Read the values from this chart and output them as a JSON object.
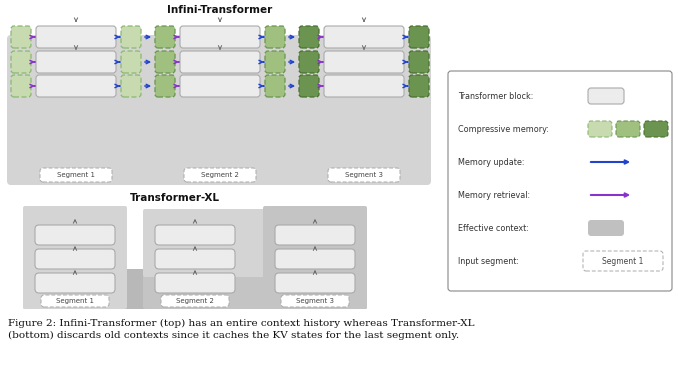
{
  "title_infini": "Infini-Transformer",
  "title_xl": "Transformer-XL",
  "caption": "Figure 2: Infini-Transformer (top) has an entire context history whereas Transformer-XL\n(bottom) discards old contexts since it caches the KV states for the last segment only.",
  "bg_color": "#ffffff",
  "infini_bg": "#d4d4d4",
  "mem_light_fill": "#c8dab0",
  "mem_light_edge": "#8ab870",
  "mem_med_fill": "#a0c080",
  "mem_med_edge": "#6a9450",
  "mem_dark_fill": "#6a9450",
  "mem_dark_edge": "#4a7030",
  "tf_fill": "#ececec",
  "tf_edge": "#aaaaaa",
  "arrow_blue": "#2244cc",
  "arrow_purple": "#8833cc",
  "xl_bg1": "#d4d4d4",
  "xl_bg2": "#c4c4c4",
  "xl_bg3": "#b8b8b8",
  "seg_label_fill": "#ffffff",
  "seg_label_edge": "#aaaaaa",
  "legend_bg": "#ffffff",
  "legend_edge": "#888888",
  "eff_ctx_color": "#c0c0c0",
  "seg_labels": [
    "Segment 1",
    "Segment 2",
    "Segment 3"
  ]
}
